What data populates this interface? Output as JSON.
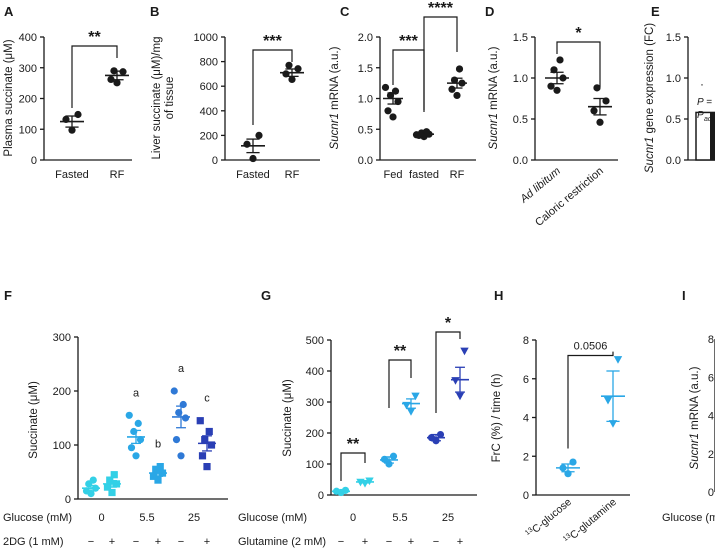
{
  "colors": {
    "black": "#1a1a1a",
    "cyan": "#33d0e6",
    "light_blue": "#2aa7e6",
    "mid_blue": "#2f79d6",
    "dark_blue": "#2a3fb5"
  },
  "chart_data": [
    {
      "panel": "A",
      "type": "scatter",
      "ylabel": "Plasma succinate (μM)",
      "ylim": [
        0,
        400
      ],
      "yticks": [
        "0",
        "100",
        "200",
        "300",
        "400"
      ],
      "categories": [
        "Fasted",
        "RF"
      ],
      "series": [
        {
          "category": "Fasted",
          "mean": 125,
          "sem": 18,
          "points": [
            97,
            132,
            148
          ],
          "marker": "circle",
          "color": "black"
        },
        {
          "category": "RF",
          "mean": 275,
          "sem": 14,
          "points": [
            251,
            262,
            287,
            290
          ],
          "marker": "circle",
          "color": "black"
        }
      ],
      "annotations": [
        {
          "text": "**",
          "between": [
            0,
            1
          ]
        }
      ]
    },
    {
      "panel": "B",
      "type": "scatter",
      "ylabel": "Liver succinate (μM)/mg of tissue",
      "ylabel_lines": [
        "Liver succinate (μM)/mg",
        "of tissue"
      ],
      "ylim": [
        0,
        1000
      ],
      "yticks": [
        "0",
        "200",
        "400",
        "600",
        "800",
        "1000"
      ],
      "categories": [
        "Fasted",
        "RF"
      ],
      "series": [
        {
          "category": "Fasted",
          "mean": 115,
          "sem": 55,
          "points": [
            12,
            128,
            200
          ],
          "marker": "circle",
          "color": "black"
        },
        {
          "category": "RF",
          "mean": 710,
          "sem": 30,
          "points": [
            655,
            700,
            742,
            770
          ],
          "marker": "circle",
          "color": "black"
        }
      ],
      "annotations": [
        {
          "text": "***",
          "between": [
            0,
            1
          ]
        }
      ]
    },
    {
      "panel": "C",
      "type": "scatter",
      "ylabel_italic": "Sucnr1",
      "ylabel": " mRNA (a.u.)",
      "ylim": [
        0,
        2.0
      ],
      "yticks": [
        "0.0",
        "0.5",
        "1.0",
        "1.5",
        "2.0"
      ],
      "categories": [
        "Fed",
        "fasted",
        "RF"
      ],
      "series": [
        {
          "category": "Fed",
          "mean": 1.0,
          "sem": 0.09,
          "points": [
            0.7,
            0.8,
            0.95,
            1.05,
            1.12,
            1.18
          ],
          "marker": "circle",
          "color": "black"
        },
        {
          "category": "fasted",
          "mean": 0.42,
          "sem": 0.02,
          "points": [
            0.38,
            0.4,
            0.42,
            0.44,
            0.46,
            0.41
          ],
          "marker": "circle",
          "color": "black"
        },
        {
          "category": "RF",
          "mean": 1.25,
          "sem": 0.08,
          "points": [
            1.05,
            1.15,
            1.25,
            1.3,
            1.48
          ],
          "marker": "circle",
          "color": "black"
        }
      ],
      "annotations": [
        {
          "text": "***",
          "between": [
            0,
            1
          ]
        },
        {
          "text": "****",
          "between": [
            1,
            2
          ]
        }
      ]
    },
    {
      "panel": "D",
      "type": "scatter",
      "ylabel_italic": "Sucnr1",
      "ylabel": " mRNA (a.u.)",
      "ylim": [
        0,
        1.5
      ],
      "yticks": [
        "0.0",
        "0.5",
        "1.0",
        "1.5"
      ],
      "categories": [
        "Ad libitum",
        "Caloric restriction"
      ],
      "category_italic": [
        true,
        false
      ],
      "series": [
        {
          "category": "Ad libitum",
          "mean": 1.0,
          "sem": 0.07,
          "points": [
            0.85,
            0.9,
            1.0,
            1.1,
            1.22
          ],
          "marker": "circle",
          "color": "black"
        },
        {
          "category": "Caloric restriction",
          "mean": 0.65,
          "sem": 0.1,
          "points": [
            0.46,
            0.6,
            0.72,
            0.88
          ],
          "marker": "circle",
          "color": "black"
        }
      ],
      "annotations": [
        {
          "text": "*",
          "between": [
            0,
            1
          ]
        }
      ]
    },
    {
      "panel": "E",
      "type": "bar",
      "partial": true,
      "ylabel_italic": "Sucnr1",
      "ylabel": " gene expression (FC)",
      "ylim": [
        0,
        1.5
      ],
      "yticks": [
        "0.0",
        "0.5",
        "1.0",
        "1.5"
      ],
      "values": [
        0.58
      ],
      "text_fragments": [
        "P =",
        "P",
        "adj"
      ]
    },
    {
      "panel": "F",
      "type": "scatter",
      "ylabel": "Succinate (μM)",
      "ylim": [
        0,
        300
      ],
      "yticks": [
        "0",
        "100",
        "200",
        "300"
      ],
      "x_row_labels": [
        "Glucose (mM)",
        "2DG (1 mM)"
      ],
      "groups": [
        "0",
        "5.5",
        "25"
      ],
      "group_signs": [
        "−",
        "+"
      ],
      "series": [
        {
          "group": "0",
          "treatment": "−",
          "mean": 20,
          "sem": 5,
          "points": [
            10,
            15,
            20,
            28,
            35
          ],
          "marker": "circle",
          "color": "cyan"
        },
        {
          "group": "0",
          "treatment": "+",
          "mean": 28,
          "sem": 6,
          "points": [
            12,
            22,
            28,
            35,
            45
          ],
          "marker": "square",
          "color": "cyan"
        },
        {
          "group": "5.5",
          "treatment": "−",
          "mean": 115,
          "sem": 12,
          "points": [
            80,
            95,
            110,
            125,
            140,
            155
          ],
          "marker": "circle",
          "color": "light_blue",
          "label": "a"
        },
        {
          "group": "5.5",
          "treatment": "+",
          "mean": 48,
          "sem": 6,
          "points": [
            35,
            42,
            48,
            55,
            60
          ],
          "marker": "square",
          "color": "light_blue",
          "label": "b"
        },
        {
          "group": "25",
          "treatment": "−",
          "mean": 152,
          "sem": 20,
          "points": [
            80,
            110,
            150,
            160,
            175,
            200
          ],
          "marker": "circle",
          "color": "mid_blue",
          "label": "a"
        },
        {
          "group": "25",
          "treatment": "+",
          "mean": 103,
          "sem": 14,
          "points": [
            60,
            80,
            100,
            110,
            125,
            145
          ],
          "marker": "square",
          "color": "dark_blue",
          "label": "c"
        }
      ]
    },
    {
      "panel": "G",
      "type": "scatter",
      "ylabel": "Succinate (μM)",
      "ylim": [
        0,
        500
      ],
      "yticks": [
        "0",
        "100",
        "200",
        "300",
        "400",
        "500"
      ],
      "x_row_labels": [
        "Glucose (mM)",
        "Glutamine (2 mM)"
      ],
      "groups": [
        "0",
        "5.5",
        "25"
      ],
      "group_signs": [
        "−",
        "+"
      ],
      "series": [
        {
          "group": "0",
          "treatment": "−",
          "mean": 12,
          "sem": 3,
          "points": [
            8,
            12,
            15
          ],
          "marker": "circle",
          "color": "cyan"
        },
        {
          "group": "0",
          "treatment": "+",
          "mean": 42,
          "sem": 3,
          "points": [
            38,
            42,
            46
          ],
          "marker": "triangle",
          "color": "cyan"
        },
        {
          "group": "5.5",
          "treatment": "−",
          "mean": 113,
          "sem": 10,
          "points": [
            100,
            115,
            125
          ],
          "marker": "circle",
          "color": "light_blue"
        },
        {
          "group": "5.5",
          "treatment": "+",
          "mean": 295,
          "sem": 15,
          "points": [
            270,
            290,
            320
          ],
          "marker": "triangle",
          "color": "light_blue"
        },
        {
          "group": "25",
          "treatment": "−",
          "mean": 185,
          "sem": 10,
          "points": [
            175,
            185,
            195
          ],
          "marker": "circle",
          "color": "dark_blue"
        },
        {
          "group": "25",
          "treatment": "+",
          "mean": 372,
          "sem": 40,
          "points": [
            320,
            370,
            465
          ],
          "marker": "triangle",
          "color": "dark_blue"
        }
      ],
      "annotations": [
        {
          "text": "**",
          "group": "0"
        },
        {
          "text": "**",
          "group": "5.5"
        },
        {
          "text": "*",
          "group": "25"
        }
      ]
    },
    {
      "panel": "H",
      "type": "scatter",
      "ylabel": "FrC (%) / time (h)",
      "ylim": [
        0,
        8
      ],
      "yticks": [
        "0",
        "2",
        "4",
        "6",
        "8"
      ],
      "categories": [
        "glucose",
        "glutamine"
      ],
      "category_superscript": "13",
      "category_prefix": "C-",
      "series": [
        {
          "category": "glucose",
          "mean": 1.4,
          "sem": 0.2,
          "points": [
            1.1,
            1.4,
            1.7
          ],
          "marker": "circle",
          "color": "light_blue"
        },
        {
          "category": "glutamine",
          "mean": 5.1,
          "sem": 1.3,
          "points": [
            3.7,
            4.9,
            7.0
          ],
          "marker": "triangle",
          "color": "light_blue"
        }
      ],
      "annotations": [
        {
          "text": "0.0506",
          "between": [
            0,
            1
          ]
        }
      ]
    },
    {
      "panel": "I",
      "type": "scatter",
      "partial": true,
      "ylabel_italic": "Sucnr1",
      "ylabel": " mRNA (a.u.)",
      "yticks": [
        "0",
        "2",
        "4",
        "6",
        "8"
      ],
      "x_row_labels": [
        "Glucose (m"
      ]
    }
  ]
}
